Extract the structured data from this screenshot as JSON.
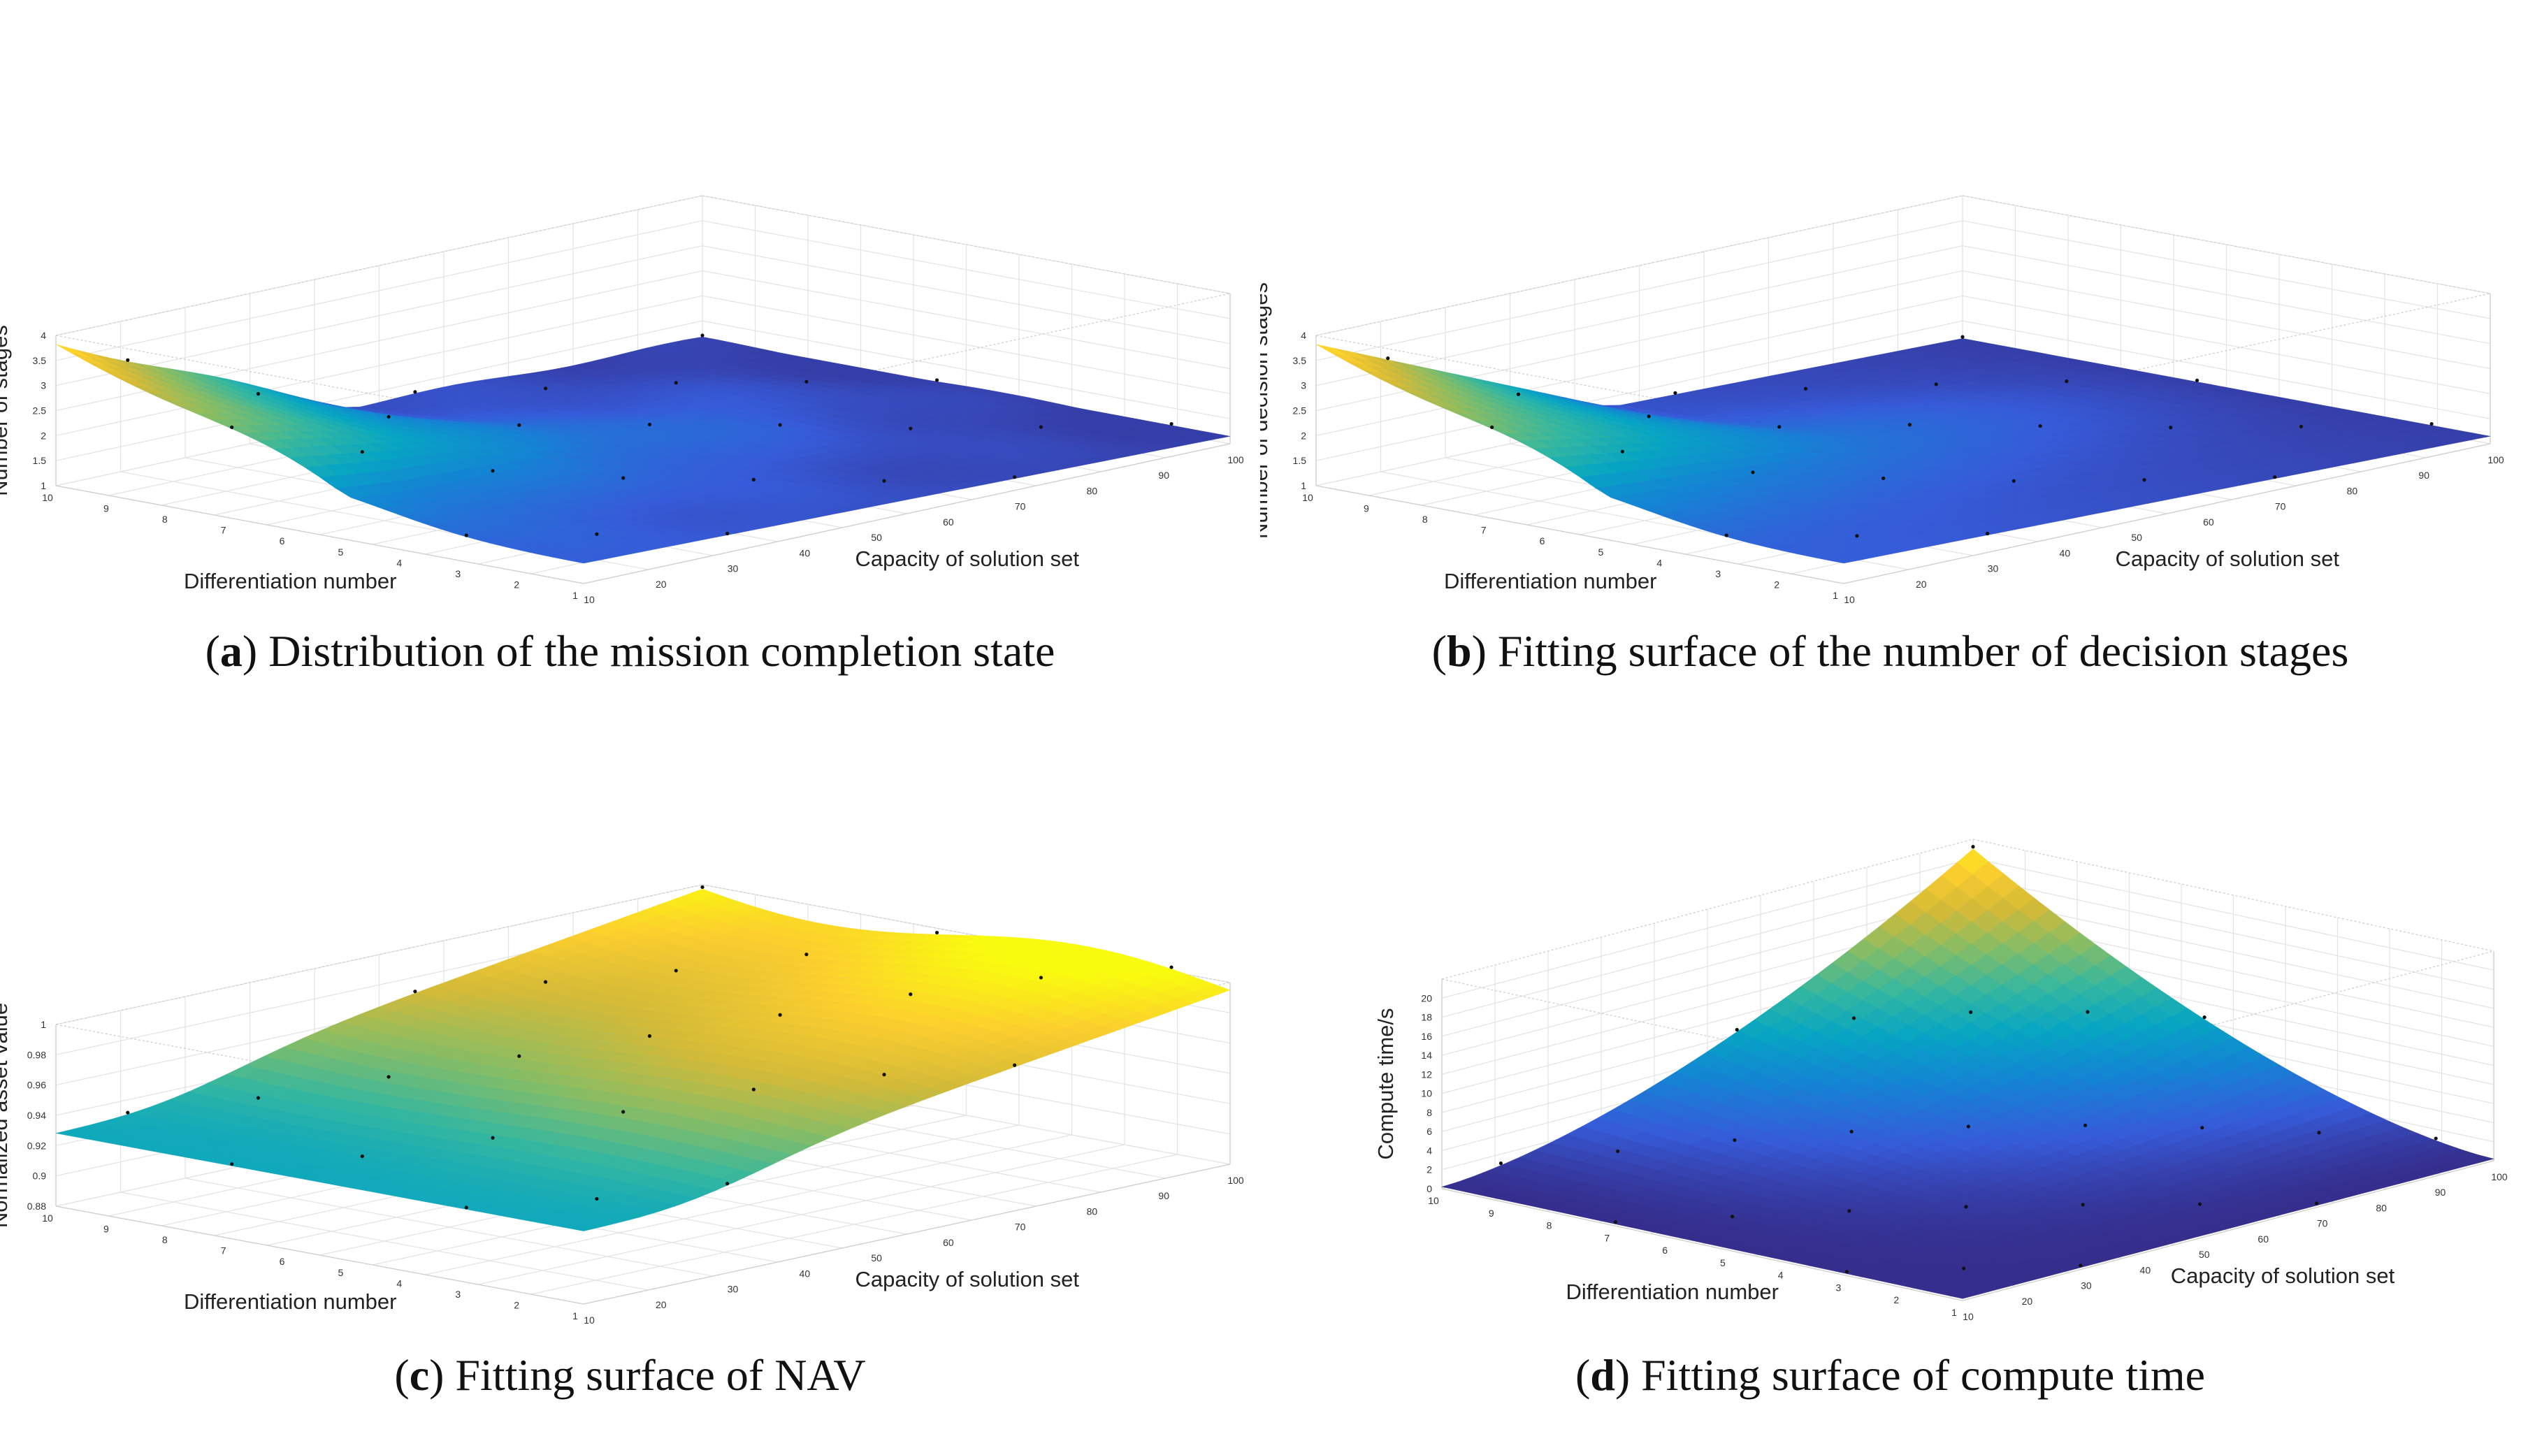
{
  "chart_data": [
    {
      "type": "surface",
      "panel_letter": "a",
      "caption": "Distribution of the mission completion state",
      "xlabel": "Capacity of solution set",
      "ylabel": "Differentiation number",
      "zlabel": "Number of stages",
      "x_ticks": [
        "10",
        "20",
        "30",
        "40",
        "50",
        "60",
        "70",
        "80",
        "90",
        "100"
      ],
      "y_ticks": [
        "1",
        "2",
        "3",
        "4",
        "5",
        "6",
        "7",
        "8",
        "9",
        "10"
      ],
      "z_ticks": [
        "1",
        "1.5",
        "2",
        "2.5",
        "3",
        "3.5",
        "4"
      ],
      "zlim": [
        1,
        4
      ],
      "corner_values": {
        "x10_y1": 1.6,
        "x10_y10": 3.6,
        "x100_y1": 1.3,
        "x100_y10": 1.2
      },
      "surface_trend": "high (~3.6) at low capacity and high differentiation, dropping to ~1.2-1.6 elsewhere"
    },
    {
      "type": "surface",
      "panel_letter": "b",
      "caption": "Fitting surface of the number of decision stages",
      "xlabel": "Capacity of solution set",
      "ylabel": "Differentiation number",
      "zlabel": "Number of decision stages",
      "x_ticks": [
        "10",
        "20",
        "30",
        "40",
        "50",
        "60",
        "70",
        "80",
        "90",
        "100"
      ],
      "y_ticks": [
        "1",
        "2",
        "3",
        "4",
        "5",
        "6",
        "7",
        "8",
        "9",
        "10"
      ],
      "z_ticks": [
        "1",
        "1.5",
        "2",
        "2.5",
        "3",
        "3.5",
        "4"
      ],
      "zlim": [
        1,
        4
      ],
      "corner_values": {
        "x10_y1": 1.6,
        "x10_y10": 3.6,
        "x100_y1": 1.3,
        "x100_y10": 1.2
      },
      "surface_trend": "fitted surface, high (~3.6) at low capacity and high differentiation"
    },
    {
      "type": "surface",
      "panel_letter": "c",
      "caption": "Fitting surface of NAV",
      "xlabel": "Capacity of solution set",
      "ylabel": "Differentiation number",
      "zlabel": "Normalized asset value",
      "x_ticks": [
        "10",
        "20",
        "30",
        "40",
        "50",
        "60",
        "70",
        "80",
        "90",
        "100"
      ],
      "y_ticks": [
        "1",
        "2",
        "3",
        "4",
        "5",
        "6",
        "7",
        "8",
        "9",
        "10"
      ],
      "z_ticks": [
        "0.88",
        "0.9",
        "0.92",
        "0.94",
        "0.96",
        "0.98",
        "1"
      ],
      "zlim": [
        0.88,
        1
      ],
      "corner_values": {
        "x10_y1": 0.94,
        "x10_y10": 0.935,
        "x100_y1": 0.97,
        "x100_y10": 1.0
      },
      "surface_trend": "rises from ~0.935 toward ~1.0 with increasing capacity"
    },
    {
      "type": "surface",
      "panel_letter": "d",
      "caption": "Fitting surface of compute time",
      "xlabel": "Capacity of solution set",
      "ylabel": "Differentiation number",
      "zlabel": "Compute time/s",
      "x_ticks": [
        "10",
        "20",
        "30",
        "40",
        "50",
        "60",
        "70",
        "80",
        "90",
        "100"
      ],
      "y_ticks": [
        "1",
        "2",
        "3",
        "4",
        "5",
        "6",
        "7",
        "8",
        "9",
        "10"
      ],
      "z_ticks": [
        "0",
        "2",
        "4",
        "6",
        "8",
        "10",
        "12",
        "14",
        "16",
        "18",
        "20"
      ],
      "zlim": [
        0,
        22
      ],
      "corner_values": {
        "x10_y1": 0.2,
        "x10_y10": 0.3,
        "x100_y1": 0.5,
        "x100_y10": 21
      },
      "surface_trend": "grows with both capacity and differentiation number, peak ~21 s at capacity 100 and differentiation 10"
    }
  ]
}
